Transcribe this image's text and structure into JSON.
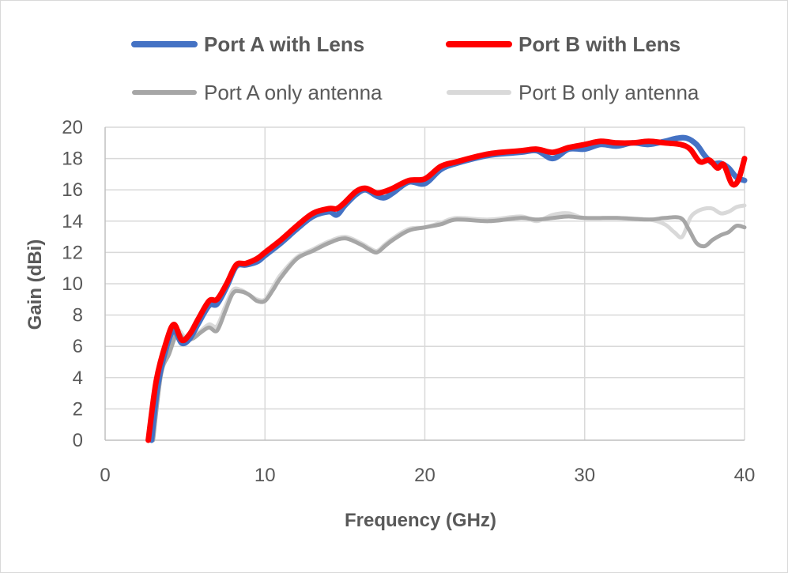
{
  "chart_data": {
    "type": "line",
    "title": "",
    "xlabel": "Frequency (GHz)",
    "ylabel": "Gain (dBi)",
    "xlim": [
      0,
      40
    ],
    "ylim": [
      0,
      20
    ],
    "x_ticks": [
      0,
      10,
      20,
      30,
      40
    ],
    "y_ticks": [
      0,
      2,
      4,
      6,
      8,
      10,
      12,
      14,
      16,
      18,
      20
    ],
    "x_tick_labels": [
      "0",
      "10",
      "20",
      "30",
      "40"
    ],
    "y_tick_labels": [
      "0",
      "2",
      "4",
      "6",
      "8",
      "10",
      "12",
      "14",
      "16",
      "18",
      "20"
    ],
    "grid": true,
    "legend_position": "top",
    "series": [
      {
        "name": "Port A with Lens",
        "color": "#4472C4",
        "bold_label": true,
        "x": [
          2.9,
          3.3,
          3.8,
          4.3,
          4.8,
          5.3,
          5.8,
          6.5,
          7.0,
          7.6,
          8.2,
          8.8,
          9.5,
          10.0,
          11.0,
          12.0,
          13.0,
          14.0,
          14.5,
          15.0,
          15.7,
          16.3,
          17.0,
          17.5,
          18.0,
          19.0,
          20.0,
          21.0,
          22.0,
          24.0,
          26.0,
          27.0,
          28.0,
          29.0,
          30.0,
          31.0,
          32.0,
          33.0,
          34.0,
          35.0,
          35.8,
          36.4,
          37.0,
          37.5,
          38.0,
          38.5,
          39.0,
          39.5,
          40.0
        ],
        "y": [
          0,
          3.5,
          5.8,
          7.0,
          6.2,
          6.5,
          7.4,
          8.6,
          8.7,
          9.8,
          11.1,
          11.2,
          11.4,
          11.8,
          12.6,
          13.5,
          14.3,
          14.6,
          14.4,
          15.0,
          15.7,
          16.0,
          15.6,
          15.5,
          15.8,
          16.5,
          16.4,
          17.3,
          17.7,
          18.2,
          18.4,
          18.5,
          18.0,
          18.6,
          18.6,
          18.9,
          18.8,
          19.0,
          18.9,
          19.1,
          19.3,
          19.3,
          18.9,
          18.2,
          17.7,
          17.7,
          17.4,
          16.8,
          16.6
        ]
      },
      {
        "name": "Port B with Lens",
        "color": "#FF0000",
        "bold_label": true,
        "x": [
          2.7,
          3.2,
          3.8,
          4.3,
          4.8,
          5.3,
          5.8,
          6.5,
          7.0,
          7.6,
          8.2,
          8.8,
          9.5,
          10.0,
          11.0,
          12.0,
          13.0,
          14.0,
          14.5,
          15.0,
          15.7,
          16.3,
          17.0,
          17.5,
          18.0,
          19.0,
          20.0,
          21.0,
          22.0,
          24.0,
          26.0,
          27.0,
          28.0,
          29.0,
          30.0,
          31.0,
          32.0,
          33.0,
          34.0,
          35.0,
          36.0,
          36.6,
          37.2,
          37.8,
          38.3,
          38.7,
          39.2,
          39.6,
          40.0
        ],
        "y": [
          0,
          3.8,
          6.2,
          7.4,
          6.4,
          6.8,
          7.7,
          8.9,
          9.0,
          10.0,
          11.2,
          11.3,
          11.6,
          12.0,
          12.8,
          13.7,
          14.5,
          14.8,
          14.8,
          15.2,
          15.9,
          16.1,
          15.8,
          15.9,
          16.1,
          16.6,
          16.7,
          17.5,
          17.8,
          18.3,
          18.5,
          18.6,
          18.4,
          18.7,
          18.9,
          19.1,
          19.0,
          19.0,
          19.1,
          19.0,
          18.9,
          18.6,
          17.8,
          17.9,
          17.4,
          17.6,
          16.4,
          16.6,
          18.0
        ]
      },
      {
        "name": "Port A only antenna",
        "color": "#A6A6A6",
        "bold_label": false,
        "x": [
          3.0,
          3.5,
          4.0,
          4.5,
          5.0,
          5.5,
          6.0,
          6.5,
          7.0,
          7.5,
          8.0,
          8.5,
          9.0,
          9.5,
          10.0,
          10.5,
          11.0,
          12.0,
          13.0,
          14.0,
          15.0,
          16.0,
          16.5,
          17.0,
          17.5,
          18.0,
          19.0,
          20.0,
          21.0,
          22.0,
          24.0,
          26.0,
          27.0,
          28.0,
          29.0,
          30.0,
          32.0,
          34.0,
          35.0,
          36.0,
          36.5,
          37.0,
          37.5,
          38.0,
          38.5,
          39.0,
          39.5,
          40.0
        ],
        "y": [
          0,
          4.2,
          5.5,
          6.8,
          6.4,
          6.5,
          6.9,
          7.2,
          7.0,
          8.2,
          9.4,
          9.5,
          9.3,
          8.9,
          8.9,
          9.6,
          10.4,
          11.6,
          12.1,
          12.6,
          12.9,
          12.5,
          12.2,
          12.0,
          12.4,
          12.8,
          13.4,
          13.6,
          13.8,
          14.1,
          14.0,
          14.2,
          14.1,
          14.2,
          14.3,
          14.2,
          14.2,
          14.1,
          14.2,
          14.2,
          13.5,
          12.6,
          12.4,
          12.8,
          13.1,
          13.3,
          13.7,
          13.6
        ]
      },
      {
        "name": "Port B only antenna",
        "color": "#D9D9D9",
        "bold_label": false,
        "x": [
          3.0,
          3.5,
          4.0,
          4.5,
          5.0,
          5.5,
          6.0,
          6.5,
          7.0,
          7.5,
          8.0,
          8.5,
          9.0,
          9.5,
          10.0,
          10.5,
          11.0,
          12.0,
          13.0,
          14.0,
          15.0,
          16.0,
          16.5,
          17.0,
          17.5,
          18.0,
          19.0,
          20.0,
          21.0,
          22.0,
          24.0,
          26.0,
          27.0,
          28.0,
          29.0,
          30.0,
          32.0,
          34.0,
          35.0,
          35.6,
          36.1,
          36.6,
          37.0,
          37.5,
          38.0,
          38.5,
          39.0,
          39.5,
          40.0
        ],
        "y": [
          0,
          4.3,
          5.7,
          7.0,
          6.6,
          6.6,
          7.0,
          7.4,
          7.3,
          8.5,
          9.6,
          9.6,
          9.3,
          9.0,
          9.0,
          9.8,
          10.6,
          11.7,
          12.2,
          12.7,
          13.0,
          12.6,
          12.3,
          12.1,
          12.5,
          12.9,
          13.5,
          13.6,
          13.9,
          14.2,
          14.1,
          14.3,
          14.0,
          14.4,
          14.5,
          14.2,
          14.2,
          14.1,
          13.8,
          13.3,
          13.0,
          14.2,
          14.6,
          14.8,
          14.8,
          14.5,
          14.6,
          14.9,
          15.0
        ]
      }
    ]
  }
}
